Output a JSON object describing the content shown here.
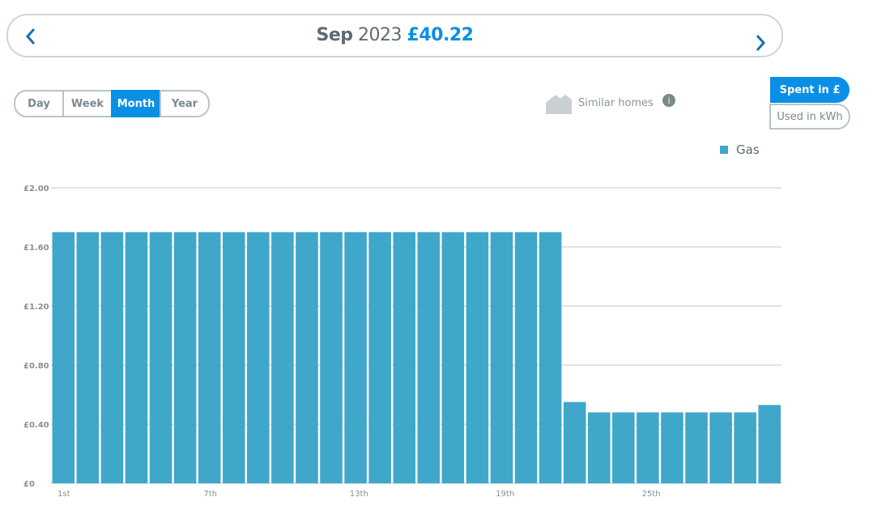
{
  "header": {
    "month": "Sep",
    "year": "2023",
    "total": "£40.22"
  },
  "period_tabs": [
    "Day",
    "Week",
    "Month",
    "Year"
  ],
  "active_tab": 2,
  "similar_homes": "Similar homes",
  "unit_toggles": [
    "Spent in £",
    "Used in kWh"
  ],
  "active_toggle": 0,
  "chart_data": {
    "type": "bar",
    "categories": [
      "1st",
      null,
      null,
      null,
      null,
      null,
      "7th",
      null,
      null,
      null,
      null,
      null,
      "13th",
      null,
      null,
      null,
      null,
      null,
      "19th",
      null,
      null,
      null,
      null,
      null,
      "25th",
      null,
      null,
      null,
      null,
      null
    ],
    "series": [
      {
        "name": "Gas",
        "color": "#3fa7c9",
        "values": [
          1.7,
          1.7,
          1.7,
          1.7,
          1.7,
          1.7,
          1.7,
          1.7,
          1.7,
          1.7,
          1.7,
          1.7,
          1.7,
          1.7,
          1.7,
          1.7,
          1.7,
          1.7,
          1.7,
          1.7,
          1.7,
          0.55,
          0.48,
          0.48,
          0.48,
          0.48,
          0.48,
          0.48,
          0.48,
          0.53
        ]
      }
    ],
    "ylim": [
      0,
      2
    ],
    "yticks": [
      {
        "value": 0,
        "label": "£0"
      },
      {
        "value": 0.4,
        "label": "£0.40"
      },
      {
        "value": 0.8,
        "label": "£0.80"
      },
      {
        "value": 1.2,
        "label": "£1.20"
      },
      {
        "value": 1.6,
        "label": "£1.60"
      },
      {
        "value": 2,
        "label": "£2.00"
      }
    ],
    "grid": true,
    "legend": "top-right"
  }
}
